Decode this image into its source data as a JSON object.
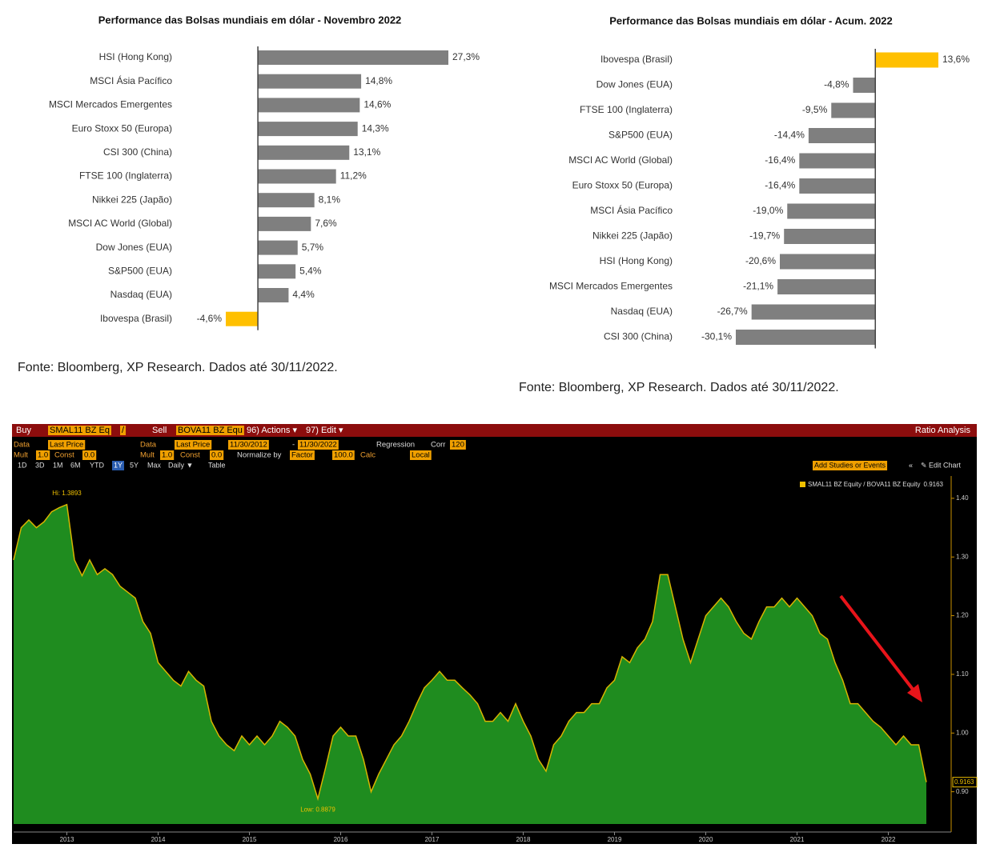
{
  "chart_data": [
    {
      "type": "bar",
      "orientation": "horizontal",
      "title": "Performance  das Bolsas mundiais em dólar - Novembro 2022",
      "categories": [
        "HSI (Hong Kong)",
        "MSCI Ásia Pacífico",
        "MSCI Mercados Emergentes",
        "Euro Stoxx 50 (Europa)",
        "CSI 300 (China)",
        "FTSE 100 (Inglaterra)",
        "Nikkei 225 (Japão)",
        "MSCI AC World (Global)",
        "Dow Jones (EUA)",
        "S&P500 (EUA)",
        "Nasdaq (EUA)",
        "Ibovespa (Brasil)"
      ],
      "values": [
        27.3,
        14.8,
        14.6,
        14.3,
        13.1,
        11.2,
        8.1,
        7.6,
        5.7,
        5.4,
        4.4,
        -4.6
      ],
      "value_labels": [
        "27,3%",
        "14,8%",
        "14,6%",
        "14,3%",
        "13,1%",
        "11,2%",
        "8,1%",
        "7,6%",
        "5,7%",
        "5,4%",
        "4,4%",
        "-4,6%"
      ],
      "colors": [
        "#7f7f7f",
        "#7f7f7f",
        "#7f7f7f",
        "#7f7f7f",
        "#7f7f7f",
        "#7f7f7f",
        "#7f7f7f",
        "#7f7f7f",
        "#7f7f7f",
        "#7f7f7f",
        "#7f7f7f",
        "#ffc000"
      ],
      "source": "Fonte: Bloomberg, XP Research. Dados até 30/11/2022."
    },
    {
      "type": "bar",
      "orientation": "horizontal",
      "title": "Performance  das Bolsas mundiais em dólar - Acum. 2022",
      "categories": [
        "Ibovespa (Brasil)",
        "Dow Jones (EUA)",
        "FTSE 100 (Inglaterra)",
        "S&P500 (EUA)",
        "MSCI AC World (Global)",
        "Euro Stoxx 50 (Europa)",
        "MSCI Ásia Pacífico",
        "Nikkei 225 (Japão)",
        "HSI (Hong Kong)",
        "MSCI Mercados Emergentes",
        "Nasdaq (EUA)",
        "CSI 300 (China)"
      ],
      "values": [
        13.6,
        -4.8,
        -9.5,
        -14.4,
        -16.4,
        -16.4,
        -19.0,
        -19.7,
        -20.6,
        -21.1,
        -26.7,
        -30.1
      ],
      "value_labels": [
        "13,6%",
        "-4,8%",
        "-9,5%",
        "-14,4%",
        "-16,4%",
        "-16,4%",
        "-19,0%",
        "-19,7%",
        "-20,6%",
        "-21,1%",
        "-26,7%",
        "-30,1%"
      ],
      "colors": [
        "#ffc000",
        "#7f7f7f",
        "#7f7f7f",
        "#7f7f7f",
        "#7f7f7f",
        "#7f7f7f",
        "#7f7f7f",
        "#7f7f7f",
        "#7f7f7f",
        "#7f7f7f",
        "#7f7f7f",
        "#7f7f7f"
      ],
      "source": "Fonte: Bloomberg, XP Research. Dados até 30/11/2022."
    },
    {
      "type": "area",
      "categories": [
        null,
        null,
        null,
        null,
        null,
        null,
        null,
        "2013",
        null,
        null,
        null,
        null,
        null,
        null,
        null,
        null,
        null,
        null,
        null,
        "2014",
        null,
        null,
        null,
        null,
        null,
        null,
        null,
        null,
        null,
        null,
        null,
        "2015",
        null,
        null,
        null,
        null,
        null,
        null,
        null,
        null,
        null,
        null,
        null,
        "2016",
        null,
        null,
        null,
        null,
        null,
        null,
        null,
        null,
        null,
        null,
        null,
        "2017",
        null,
        null,
        null,
        null,
        null,
        null,
        null,
        null,
        null,
        null,
        null,
        "2018",
        null,
        null,
        null,
        null,
        null,
        null,
        null,
        null,
        null,
        null,
        null,
        "2019",
        null,
        null,
        null,
        null,
        null,
        null,
        null,
        null,
        null,
        null,
        null,
        "2020",
        null,
        null,
        null,
        null,
        null,
        null,
        null,
        null,
        null,
        null,
        null,
        "2021",
        null,
        null,
        null,
        null,
        null,
        null,
        null,
        null,
        null,
        null,
        null,
        "2022",
        null,
        null,
        null,
        null,
        null
      ],
      "series": [
        {
          "name": "SMAL11 BZ Equity / BOVA11 BZ Equity",
          "color": "#1f8c1f",
          "line_color": "#d8b400",
          "values": [
            1.295,
            1.35,
            1.363,
            1.35,
            1.36,
            1.377,
            1.384,
            1.3893,
            1.295,
            1.268,
            1.295,
            1.27,
            1.28,
            1.27,
            1.25,
            1.24,
            1.23,
            1.19,
            1.17,
            1.12,
            1.105,
            1.09,
            1.08,
            1.105,
            1.09,
            1.08,
            1.02,
            0.995,
            0.98,
            0.97,
            0.995,
            0.98,
            0.995,
            0.98,
            0.995,
            1.02,
            1.01,
            0.995,
            0.955,
            0.93,
            0.8879,
            0.94,
            0.995,
            1.01,
            0.995,
            0.995,
            0.955,
            0.9,
            0.93,
            0.955,
            0.98,
            0.995,
            1.02,
            1.05,
            1.077,
            1.09,
            1.105,
            1.09,
            1.09,
            1.077,
            1.065,
            1.05,
            1.02,
            1.02,
            1.035,
            1.02,
            1.05,
            1.02,
            0.995,
            0.955,
            0.935,
            0.98,
            0.995,
            1.02,
            1.035,
            1.035,
            1.05,
            1.05,
            1.077,
            1.09,
            1.13,
            1.12,
            1.145,
            1.16,
            1.19,
            1.27,
            1.27,
            1.215,
            1.16,
            1.12,
            1.16,
            1.2,
            1.215,
            1.23,
            1.215,
            1.19,
            1.17,
            1.16,
            1.19,
            1.215,
            1.215,
            1.23,
            1.215,
            1.23,
            1.215,
            1.2,
            1.17,
            1.16,
            1.12,
            1.09,
            1.05,
            1.05,
            1.035,
            1.02,
            1.01,
            0.995,
            0.98,
            0.995,
            0.98,
            0.98,
            0.9163
          ],
          "value_labels": [
            null,
            null,
            null,
            null,
            null,
            null,
            null,
            null,
            null,
            null,
            null,
            null,
            null,
            null,
            null,
            null,
            null,
            null,
            null,
            null,
            null,
            null,
            null,
            null,
            null,
            null,
            null,
            null,
            null,
            null,
            null,
            null,
            null,
            null,
            null,
            null,
            null,
            null,
            null,
            null,
            null,
            null,
            null,
            null,
            null,
            null,
            null,
            null,
            null,
            null,
            null,
            null,
            null,
            null,
            null,
            null,
            null,
            null,
            null,
            null,
            null,
            null,
            null,
            null,
            null,
            null,
            null,
            null,
            null,
            null,
            null,
            null,
            null,
            null,
            null,
            null,
            null,
            null,
            null,
            null,
            null,
            null,
            null,
            null,
            null,
            null,
            null,
            null,
            null,
            null,
            null,
            null,
            null,
            null,
            null,
            null,
            null,
            null,
            null,
            null,
            null,
            null,
            null,
            null,
            null,
            null,
            null,
            null,
            null,
            null,
            null,
            null,
            null,
            null,
            null,
            null,
            null,
            null,
            null,
            null,
            "0.9163"
          ]
        }
      ],
      "ylim": [
        0.845,
        1.438
      ],
      "yticks": [
        {
          "value": 0.9,
          "label": "0.90"
        },
        {
          "value": 1.0,
          "label": "1.00"
        },
        {
          "value": 1.1,
          "label": "1.10"
        },
        {
          "value": 1.2,
          "label": "1.20"
        },
        {
          "value": 1.3,
          "label": "1.30"
        },
        {
          "value": 1.4,
          "label": "1.40"
        }
      ],
      "annotations": [
        {
          "text": "Hi: 1.3893",
          "value": 1.3893
        },
        {
          "text": "Low: 0.8879",
          "value": 0.8879
        }
      ]
    }
  ],
  "toolbar": {
    "rows": [
      [
        "Buy",
        "SMAL11 BZ Eq",
        "/",
        "Sell",
        "BOVA11 BZ Equ",
        "96) Actions ▾",
        "97) Edit ▾",
        "Ratio Analysis"
      ],
      [
        "Data",
        "Last Price",
        "Data",
        "Last Price",
        "11/30/2012",
        "-",
        "11/30/2022",
        "Regression",
        "Corr",
        "120"
      ],
      [
        "Mult",
        "1.0",
        "Const",
        "0.0",
        "Mult",
        "1.0",
        "Const",
        "0.0",
        "Normalize by",
        "Factor",
        "100.0",
        "Calc",
        "Local"
      ],
      [
        "1D",
        "3D",
        "1M",
        "6M",
        "YTD",
        "1Y",
        "5Y",
        "Max",
        "Daily ▼",
        "Table",
        "Add Studies or Events",
        "«",
        "✎ Edit Chart"
      ]
    ]
  }
}
